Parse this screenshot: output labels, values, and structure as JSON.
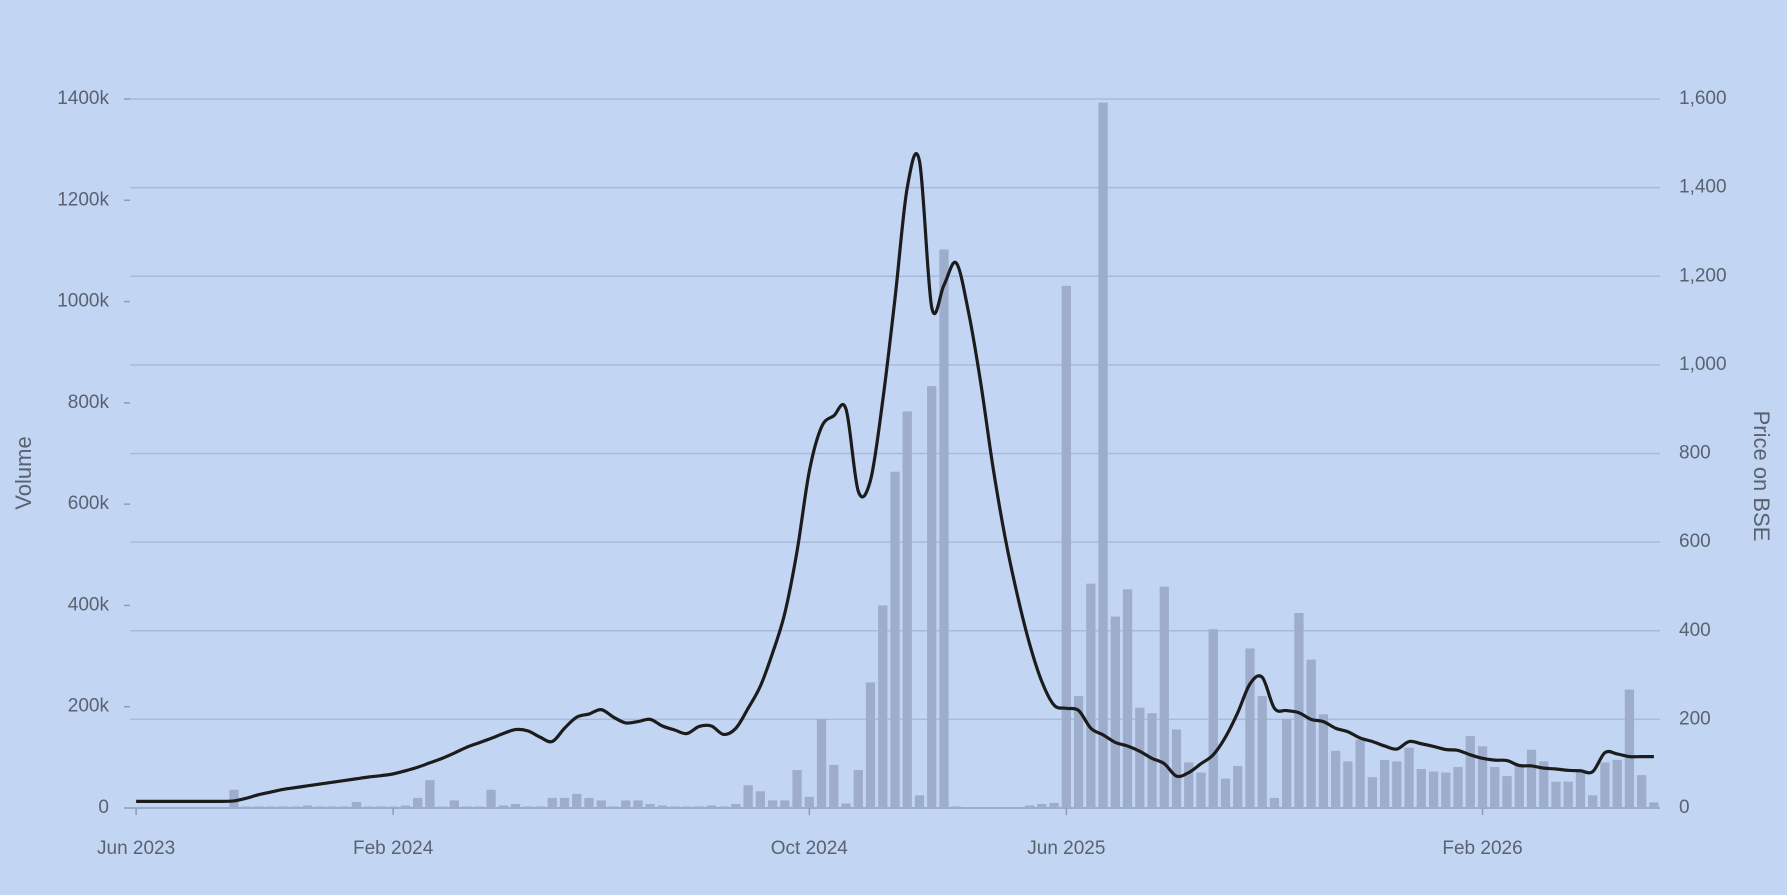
{
  "chart_data": {
    "type": "combo",
    "ylabel": "Volume",
    "y2label": "Price on BSE",
    "categories": [
      "Jun 2023",
      null,
      null,
      null,
      null,
      null,
      null,
      null,
      null,
      null,
      null,
      null,
      null,
      null,
      null,
      null,
      null,
      null,
      null,
      null,
      null,
      "Feb 2024",
      null,
      null,
      null,
      null,
      null,
      null,
      null,
      null,
      null,
      null,
      null,
      null,
      null,
      null,
      null,
      null,
      null,
      null,
      null,
      null,
      null,
      null,
      null,
      null,
      null,
      null,
      null,
      null,
      null,
      null,
      null,
      null,
      null,
      "Oct 2024",
      null,
      null,
      null,
      null,
      null,
      null,
      null,
      null,
      null,
      null,
      null,
      null,
      null,
      null,
      null,
      null,
      null,
      null,
      null,
      null,
      "Jun 2025",
      null,
      null,
      null,
      null,
      null,
      null,
      null,
      null,
      null,
      null,
      null,
      null,
      null,
      null,
      null,
      null,
      null,
      null,
      null,
      null,
      null,
      null,
      null,
      null,
      null,
      null,
      null,
      null,
      null,
      null,
      null,
      null,
      null,
      "Feb 2026",
      null,
      null,
      null,
      null,
      null,
      null,
      null,
      null,
      null,
      null,
      null,
      null,
      null,
      null
    ],
    "series": [
      {
        "type": "bar",
        "color": "#9eadcb",
        "values": [
          2000,
          2000,
          2000,
          2000,
          2000,
          2000,
          2000,
          2000,
          36000,
          3000,
          3000,
          3000,
          3000,
          3000,
          5000,
          3000,
          3000,
          3000,
          12000,
          3000,
          3000,
          3000,
          5000,
          20000,
          55000,
          3000,
          15000,
          3000,
          3000,
          36000,
          5000,
          8000,
          3000,
          3000,
          20000,
          20000,
          28000,
          20000,
          15000,
          3000,
          15000,
          15000,
          8000,
          5000,
          3000,
          3000,
          3000,
          5000,
          3000,
          8000,
          45000,
          33000,
          15000,
          15000,
          75000,
          22000,
          176000,
          85000,
          9000,
          75000,
          248000,
          400000,
          664000,
          783000,
          25000,
          833000,
          1103000,
          3000,
          2000,
          2000,
          2000,
          2000,
          2000,
          5000,
          8000,
          10000,
          1031000,
          221000,
          443000,
          1393000,
          378000,
          432000,
          198000,
          187000,
          437000,
          155000,
          90000,
          70000,
          353000,
          58000,
          83000,
          315000,
          221000,
          20000,
          176000,
          385000,
          293000,
          185000,
          113000,
          92000,
          135000,
          61000,
          95000,
          92000,
          119000,
          77000,
          72000,
          70000,
          81000,
          142000,
          122000,
          81000,
          63000,
          85000,
          115000,
          92000,
          52000,
          52000,
          70000,
          25000,
          90000,
          95000,
          234000,
          65000,
          11000
        ]
      },
      {
        "type": "line",
        "axis": "y2",
        "color": "#1c1c1c",
        "values": [
          15,
          15,
          15,
          15,
          15,
          15,
          15,
          15,
          16,
          22,
          30,
          36,
          42,
          46,
          50,
          54,
          58,
          62,
          66,
          70,
          73,
          77,
          84,
          92,
          102,
          112,
          124,
          137,
          147,
          157,
          168,
          177,
          174,
          160,
          150,
          180,
          205,
          212,
          222,
          205,
          192,
          195,
          200,
          185,
          176,
          168,
          184,
          185,
          166,
          180,
          225,
          275,
          350,
          440,
          580,
          760,
          860,
          885,
          900,
          715,
          740,
          920,
          1150,
          1400,
          1460,
          1130,
          1180,
          1230,
          1120,
          960,
          770,
          610,
          480,
          370,
          285,
          232,
          225,
          220,
          180,
          165,
          148,
          140,
          128,
          112,
          100,
          72,
          80,
          100,
          120,
          160,
          215,
          280,
          295,
          225,
          220,
          215,
          200,
          195,
          180,
          172,
          158,
          150,
          140,
          133,
          150,
          145,
          139,
          132,
          130,
          120,
          112,
          108,
          107,
          96,
          95,
          90,
          88,
          85,
          84,
          82,
          125,
          122,
          116,
          116,
          116
        ]
      }
    ],
    "ylim": [
      0,
      1400000
    ],
    "yticks": [
      0,
      {
        "value": 200000,
        "label": "200k"
      },
      {
        "value": 400000,
        "label": "400k"
      },
      {
        "value": 600000,
        "label": "600k"
      },
      {
        "value": 800000,
        "label": "800k"
      },
      {
        "value": 1000000,
        "label": "1000k"
      },
      {
        "value": 1200000,
        "label": "1200k"
      },
      {
        "value": 1400000,
        "label": "1400k"
      }
    ],
    "y2lim": [
      0,
      1600
    ],
    "y2ticks": [
      0,
      200,
      400,
      600,
      800,
      {
        "value": 1000,
        "label": "1,000"
      },
      {
        "value": 1200,
        "label": "1,200"
      },
      {
        "value": 1400,
        "label": "1,400"
      },
      {
        "value": 1600,
        "label": "1,600"
      }
    ],
    "grid": true
  }
}
